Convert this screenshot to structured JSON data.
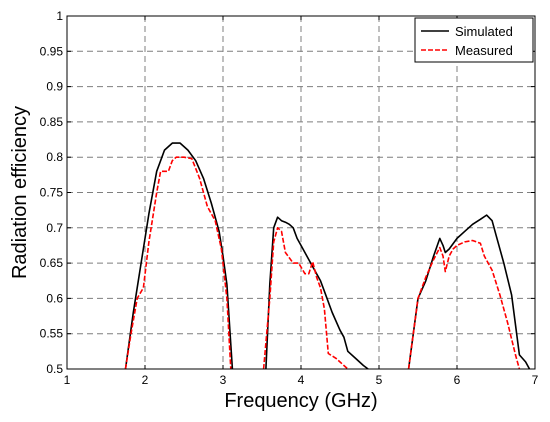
{
  "chart_data": {
    "type": "line",
    "title": "",
    "xlabel": "Frequency (GHz)",
    "ylabel": "Radiation efficiency",
    "xlim": [
      1,
      7
    ],
    "ylim": [
      0.5,
      1
    ],
    "xticks": [
      "1",
      "2",
      "3",
      "4",
      "5",
      "6",
      "7"
    ],
    "yticks": [
      "0.5",
      "0.55",
      "0.6",
      "0.65",
      "0.7",
      "0.75",
      "0.8",
      "0.85",
      "0.9",
      "0.95",
      "1"
    ],
    "grid": true,
    "legend_position": "top-right",
    "series": [
      {
        "name": "Simulated",
        "color": "#000000",
        "style": "solid",
        "segments": [
          [
            [
              1.75,
              0.5
            ],
            [
              1.85,
              0.58
            ],
            [
              1.95,
              0.65
            ],
            [
              2.05,
              0.72
            ],
            [
              2.15,
              0.78
            ],
            [
              2.25,
              0.81
            ],
            [
              2.35,
              0.82
            ],
            [
              2.45,
              0.82
            ],
            [
              2.55,
              0.81
            ],
            [
              2.65,
              0.795
            ],
            [
              2.75,
              0.77
            ],
            [
              2.85,
              0.735
            ],
            [
              2.95,
              0.695
            ],
            [
              3.0,
              0.66
            ],
            [
              3.05,
              0.62
            ],
            [
              3.12,
              0.5
            ]
          ],
          [
            [
              3.55,
              0.5
            ],
            [
              3.6,
              0.62
            ],
            [
              3.65,
              0.7
            ],
            [
              3.7,
              0.715
            ],
            [
              3.75,
              0.71
            ],
            [
              3.8,
              0.708
            ],
            [
              3.85,
              0.705
            ],
            [
              3.9,
              0.7
            ],
            [
              3.95,
              0.685
            ],
            [
              4.0,
              0.675
            ],
            [
              4.1,
              0.655
            ],
            [
              4.2,
              0.635
            ],
            [
              4.25,
              0.625
            ],
            [
              4.3,
              0.61
            ],
            [
              4.4,
              0.58
            ],
            [
              4.5,
              0.555
            ],
            [
              4.55,
              0.545
            ],
            [
              4.6,
              0.525
            ],
            [
              4.7,
              0.515
            ],
            [
              4.8,
              0.505
            ],
            [
              4.86,
              0.5
            ]
          ],
          [
            [
              5.38,
              0.5
            ],
            [
              5.5,
              0.6
            ],
            [
              5.6,
              0.625
            ],
            [
              5.7,
              0.66
            ],
            [
              5.78,
              0.685
            ],
            [
              5.82,
              0.675
            ],
            [
              5.85,
              0.665
            ],
            [
              5.9,
              0.67
            ],
            [
              6.0,
              0.685
            ],
            [
              6.1,
              0.695
            ],
            [
              6.2,
              0.705
            ],
            [
              6.3,
              0.712
            ],
            [
              6.38,
              0.718
            ],
            [
              6.45,
              0.71
            ],
            [
              6.5,
              0.69
            ],
            [
              6.6,
              0.65
            ],
            [
              6.7,
              0.605
            ],
            [
              6.8,
              0.52
            ],
            [
              6.88,
              0.51
            ],
            [
              6.93,
              0.5
            ]
          ]
        ]
      },
      {
        "name": "Measured",
        "color": "#ff0000",
        "style": "dashed",
        "segments": [
          [
            [
              1.75,
              0.5
            ],
            [
              1.82,
              0.55
            ],
            [
              1.9,
              0.6
            ],
            [
              1.98,
              0.615
            ],
            [
              2.05,
              0.68
            ],
            [
              2.15,
              0.75
            ],
            [
              2.2,
              0.78
            ],
            [
              2.3,
              0.78
            ],
            [
              2.35,
              0.795
            ],
            [
              2.4,
              0.8
            ],
            [
              2.5,
              0.8
            ],
            [
              2.6,
              0.798
            ],
            [
              2.7,
              0.77
            ],
            [
              2.8,
              0.73
            ],
            [
              2.9,
              0.71
            ],
            [
              2.98,
              0.67
            ],
            [
              3.05,
              0.6
            ],
            [
              3.1,
              0.5
            ]
          ],
          [
            [
              3.52,
              0.5
            ],
            [
              3.6,
              0.6
            ],
            [
              3.65,
              0.68
            ],
            [
              3.7,
              0.7
            ],
            [
              3.75,
              0.695
            ],
            [
              3.8,
              0.665
            ],
            [
              3.9,
              0.65
            ],
            [
              3.97,
              0.65
            ],
            [
              4.05,
              0.635
            ],
            [
              4.1,
              0.635
            ],
            [
              4.15,
              0.652
            ],
            [
              4.2,
              0.63
            ],
            [
              4.25,
              0.615
            ],
            [
              4.3,
              0.585
            ],
            [
              4.35,
              0.522
            ],
            [
              4.45,
              0.515
            ],
            [
              4.55,
              0.505
            ],
            [
              4.6,
              0.5
            ]
          ],
          [
            [
              5.38,
              0.5
            ],
            [
              5.5,
              0.6
            ],
            [
              5.6,
              0.63
            ],
            [
              5.7,
              0.655
            ],
            [
              5.78,
              0.672
            ],
            [
              5.82,
              0.66
            ],
            [
              5.85,
              0.638
            ],
            [
              5.9,
              0.66
            ],
            [
              5.95,
              0.67
            ],
            [
              6.0,
              0.675
            ],
            [
              6.1,
              0.68
            ],
            [
              6.2,
              0.682
            ],
            [
              6.3,
              0.678
            ],
            [
              6.35,
              0.66
            ],
            [
              6.45,
              0.64
            ],
            [
              6.55,
              0.605
            ],
            [
              6.65,
              0.565
            ],
            [
              6.75,
              0.52
            ],
            [
              6.8,
              0.5
            ]
          ]
        ]
      }
    ]
  }
}
